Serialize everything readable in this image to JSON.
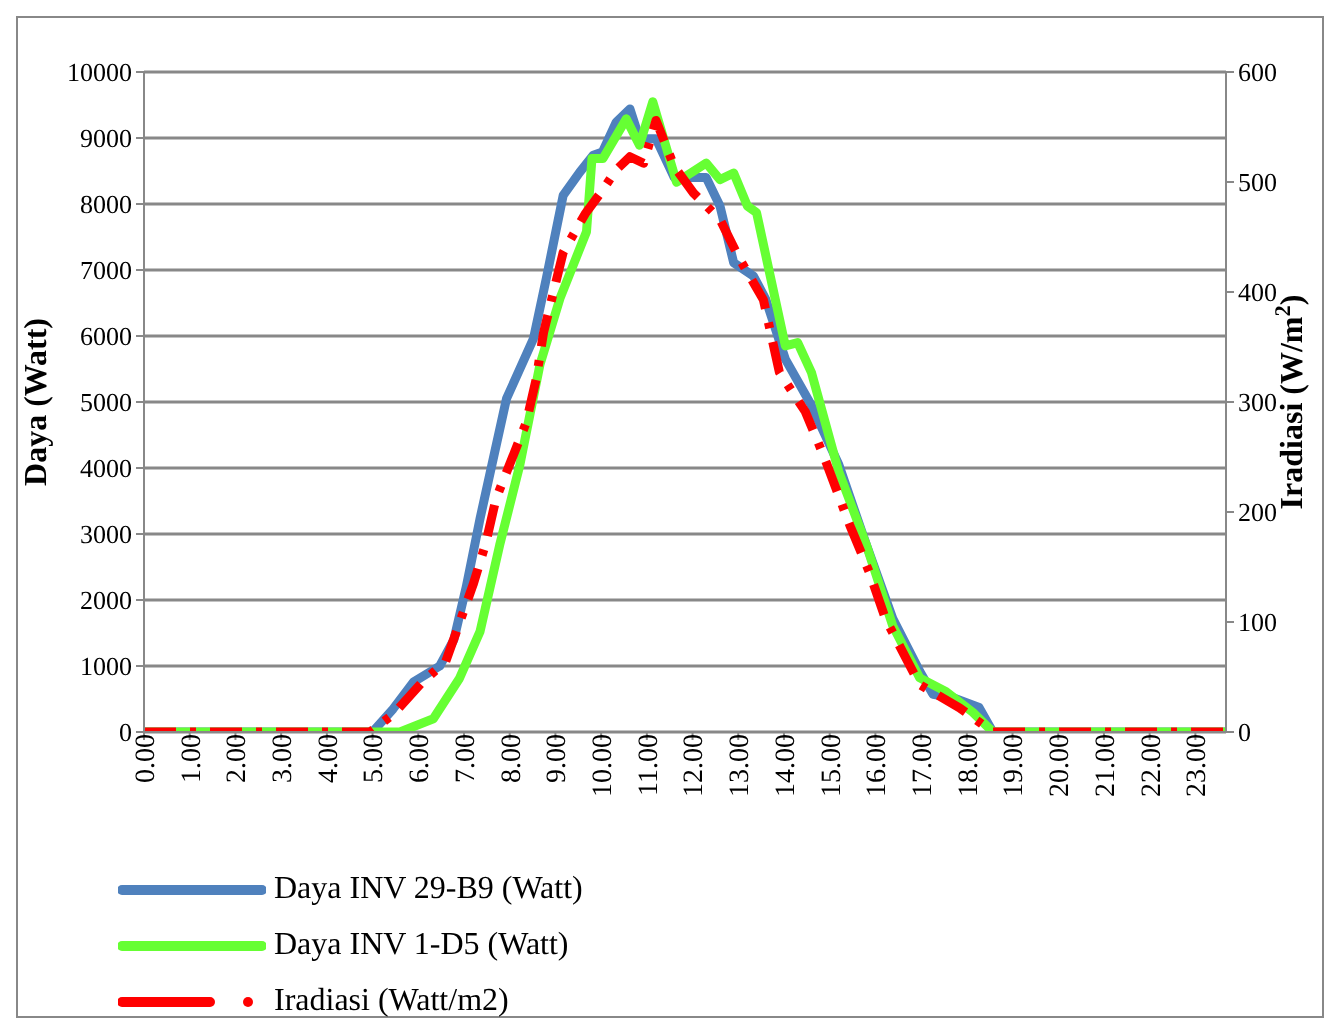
{
  "chart_data": {
    "type": "line",
    "ylabel": "Daya (Watt)",
    "y2label": "Iradiasi (W/m$^{2}$)",
    "xlim": [
      0,
      23.67
    ],
    "xticks": [
      {
        "value": 0,
        "label": "0.00"
      },
      {
        "value": 1,
        "label": "1.00"
      },
      {
        "value": 2,
        "label": "2.00"
      },
      {
        "value": 3,
        "label": "3.00"
      },
      {
        "value": 4,
        "label": "4.00"
      },
      {
        "value": 5,
        "label": "5.00"
      },
      {
        "value": 6,
        "label": "6.00"
      },
      {
        "value": 7,
        "label": "7.00"
      },
      {
        "value": 8,
        "label": "8.00"
      },
      {
        "value": 9,
        "label": "9.00"
      },
      {
        "value": 10,
        "label": "10.00"
      },
      {
        "value": 11,
        "label": "11.00"
      },
      {
        "value": 12,
        "label": "12.00"
      },
      {
        "value": 13,
        "label": "13.00"
      },
      {
        "value": 14,
        "label": "14.00"
      },
      {
        "value": 15,
        "label": "15.00"
      },
      {
        "value": 16,
        "label": "16.00"
      },
      {
        "value": 17,
        "label": "17.00"
      },
      {
        "value": 18,
        "label": "18.00"
      },
      {
        "value": 19,
        "label": "19.00"
      },
      {
        "value": 20,
        "label": "20.00"
      },
      {
        "value": 21,
        "label": "21.00"
      },
      {
        "value": 22,
        "label": "22.00"
      },
      {
        "value": 23,
        "label": "23.00"
      }
    ],
    "ylim": [
      0,
      10000
    ],
    "yticks": [
      0,
      1000,
      2000,
      3000,
      4000,
      5000,
      6000,
      7000,
      8000,
      9000,
      10000
    ],
    "y2lim": [
      0,
      600
    ],
    "y2ticks": [
      0,
      100,
      200,
      300,
      400,
      500,
      600
    ],
    "grid": "y",
    "legend": "bottom",
    "marker": "none",
    "series": [
      {
        "name": "Daya INV 29-B9 (Watt)",
        "color": "#4f81bd",
        "x": [
          0,
          5.0,
          5.45,
          5.9,
          6.47,
          6.78,
          7.05,
          7.35,
          7.64,
          7.93,
          8.52,
          8.8,
          9.17,
          9.53,
          9.83,
          10.03,
          10.33,
          10.63,
          10.84,
          11.2,
          11.6,
          12.3,
          12.6,
          12.9,
          13.33,
          13.6,
          14.03,
          14.6,
          15.2,
          15.8,
          16.38,
          16.97,
          17.26,
          17.7,
          18.27,
          18.57,
          23.67
        ],
        "values": [
          0,
          0,
          350,
          760,
          1000,
          1400,
          2200,
          3230,
          4140,
          5050,
          5960,
          6870,
          8130,
          8480,
          8740,
          8790,
          9240,
          9440,
          8990,
          8990,
          8400,
          8400,
          7970,
          7110,
          6910,
          6560,
          5650,
          4950,
          4050,
          2840,
          1720,
          920,
          570,
          520,
          370,
          0,
          0
        ]
      },
      {
        "name": "Daya INV 1-D5 (Watt)",
        "color": "#66ff33",
        "x": [
          0,
          5.6,
          6.33,
          6.9,
          7.35,
          7.78,
          8.22,
          8.66,
          9.1,
          9.68,
          9.8,
          10.04,
          10.55,
          10.84,
          11.13,
          11.65,
          12.3,
          12.6,
          12.9,
          13.2,
          13.4,
          14.03,
          14.3,
          14.6,
          15.2,
          15.8,
          16.38,
          16.97,
          17.55,
          18.13,
          18.57,
          23.67
        ],
        "values": [
          0,
          0,
          200,
          810,
          1520,
          2830,
          4040,
          5560,
          6570,
          7580,
          8690,
          8690,
          9290,
          8890,
          9550,
          8330,
          8620,
          8370,
          8470,
          7970,
          7870,
          5850,
          5900,
          5450,
          3940,
          2840,
          1610,
          820,
          610,
          300,
          0,
          0
        ]
      },
      {
        "name": "Iradiasi (Watt/m2)",
        "color": "#ff0000",
        "axis": "y2",
        "line_style": "dashed",
        "x": [
          0,
          4.94,
          5.45,
          6.1,
          6.6,
          7.2,
          7.48,
          7.7,
          8.36,
          8.58,
          8.74,
          9.17,
          9.65,
          10.04,
          10.33,
          10.63,
          10.93,
          11.2,
          11.6,
          12.02,
          12.6,
          13.03,
          13.55,
          13.9,
          14.47,
          14.87,
          15.44,
          15.87,
          16.22,
          16.97,
          17.84,
          18.57,
          23.67
        ],
        "values": [
          0,
          0,
          16,
          46,
          64,
          134,
          172,
          212,
          281,
          321,
          363,
          436,
          471,
          493,
          511,
          523,
          517,
          556,
          514,
          490,
          466,
          430,
          393,
          327,
          291,
          251,
          188,
          145,
          103,
          43,
          22,
          0,
          0
        ]
      }
    ]
  }
}
